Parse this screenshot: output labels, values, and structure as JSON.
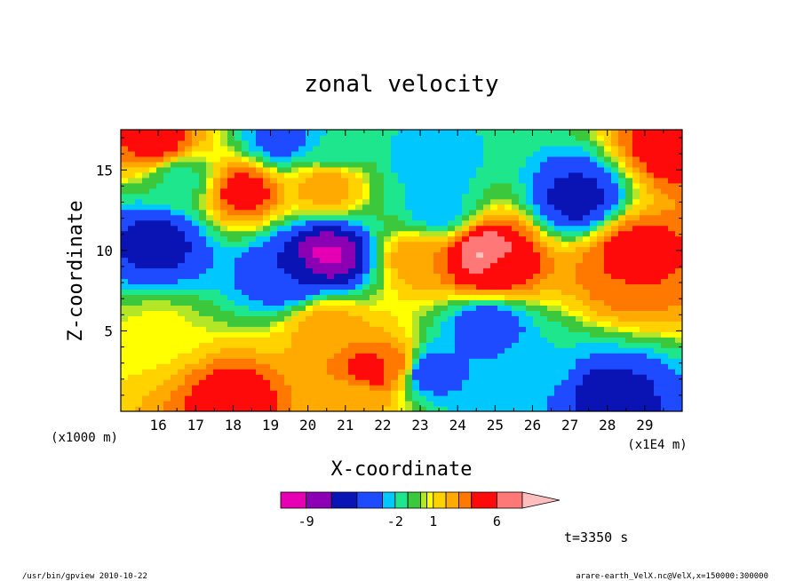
{
  "chart_data": {
    "type": "heatmap",
    "title": "zonal velocity",
    "xlabel": "X-coordinate",
    "ylabel": "Z-coordinate",
    "x_unit": "(x1E4 m)",
    "y_unit": "(x1000 m)",
    "xlim": [
      15.0,
      30.0
    ],
    "ylim": [
      0.0,
      17.5
    ],
    "x_ticks": [
      16,
      17,
      18,
      19,
      20,
      21,
      22,
      23,
      24,
      25,
      26,
      27,
      28,
      29
    ],
    "y_ticks": [
      5,
      10,
      15
    ],
    "grid": false,
    "colorbar": {
      "tick_labels": [
        "-9",
        "-2",
        "1",
        "6"
      ],
      "levels": [
        -11,
        -9,
        -7,
        -5,
        -3,
        -2,
        -1,
        0,
        0.5,
        1,
        2,
        3,
        4,
        6,
        8,
        10
      ],
      "colors": [
        "#e600b4",
        "#8c00b4",
        "#0a14b4",
        "#1e4bff",
        "#00c8ff",
        "#1ee68c",
        "#3cc83c",
        "#b4e628",
        "#ffff00",
        "#ffd200",
        "#ffaa00",
        "#ff7800",
        "#ff0a0a",
        "#ff7878",
        "#ffbebe"
      ],
      "extend": "max"
    },
    "features": [
      {
        "x": 16.0,
        "z": 10.5,
        "value": -6
      },
      {
        "x": 20.5,
        "z": 9.7,
        "value": -9.5
      },
      {
        "x": 19.5,
        "z": 8.5,
        "value": -5
      },
      {
        "x": 24.7,
        "z": 9.7,
        "value": 8.5
      },
      {
        "x": 25.0,
        "z": 9.0,
        "value": 5
      },
      {
        "x": 28.7,
        "z": 10.0,
        "value": 5
      },
      {
        "x": 18.0,
        "z": 0.8,
        "value": 5
      },
      {
        "x": 28.0,
        "z": 1.0,
        "value": -6
      },
      {
        "x": 21.7,
        "z": 2.5,
        "value": 5
      },
      {
        "x": 22.3,
        "z": 3.0,
        "value": 4
      },
      {
        "x": 23.2,
        "z": 2.5,
        "value": -5
      },
      {
        "x": 23.9,
        "z": 3.0,
        "value": -3
      },
      {
        "x": 24.8,
        "z": 5.3,
        "value": -5
      },
      {
        "x": 20.5,
        "z": 5.3,
        "value": 3
      },
      {
        "x": 16.0,
        "z": 16.8,
        "value": 5
      },
      {
        "x": 18.3,
        "z": 13.7,
        "value": 5
      },
      {
        "x": 20.5,
        "z": 14.0,
        "value": 3
      },
      {
        "x": 20.7,
        "z": 16.5,
        "value": -2
      },
      {
        "x": 16.6,
        "z": 14.5,
        "value": -1.5
      },
      {
        "x": 23.5,
        "z": 12.5,
        "value": -3
      },
      {
        "x": 23.3,
        "z": 15.5,
        "value": -3
      },
      {
        "x": 19.3,
        "z": 17.0,
        "value": -4
      },
      {
        "x": 27.2,
        "z": 13.2,
        "value": -6
      },
      {
        "x": 29.7,
        "z": 16.5,
        "value": 5
      },
      {
        "x": 28.5,
        "z": 8.5,
        "value": 4
      },
      {
        "x": 21.3,
        "z": 0.8,
        "value": 2
      },
      {
        "x": 26.0,
        "z": 3.0,
        "value": -2
      },
      {
        "x": 16.0,
        "z": 5.0,
        "value": 0.7
      },
      {
        "x": 23.0,
        "z": 9.5,
        "value": 3
      }
    ]
  },
  "annotations": {
    "time": "t=3350 s",
    "footer_left": "/usr/bin/gpview   2010-10-22",
    "footer_right": "arare-earth_VelX.nc@VelX,x=150000:300000"
  }
}
